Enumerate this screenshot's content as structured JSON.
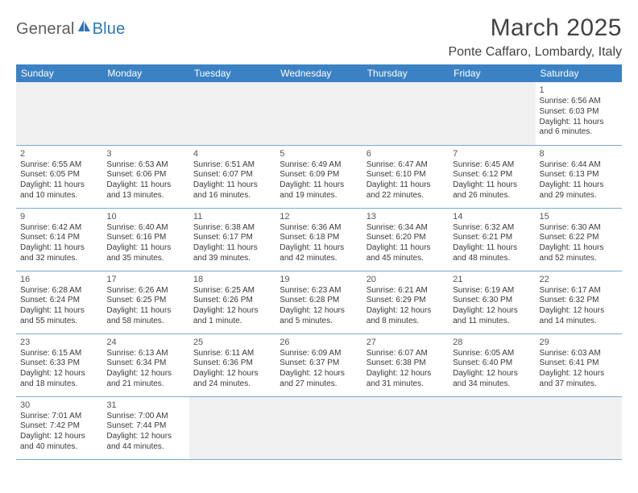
{
  "logo": {
    "general": "General",
    "blue": "Blue"
  },
  "title": "March 2025",
  "location": "Ponte Caffaro, Lombardy, Italy",
  "colors": {
    "header_bg": "#3b82c4",
    "header_text": "#ffffff",
    "grid_line": "#7ba9d1",
    "blank_bg": "#f0f0f0",
    "body_text": "#3a3a3a",
    "logo_gray": "#5e5e5e",
    "logo_blue": "#2a76b8"
  },
  "daynames": [
    "Sunday",
    "Monday",
    "Tuesday",
    "Wednesday",
    "Thursday",
    "Friday",
    "Saturday"
  ],
  "weeks": [
    [
      null,
      null,
      null,
      null,
      null,
      null,
      {
        "n": "1",
        "sr": "Sunrise: 6:56 AM",
        "ss": "Sunset: 6:03 PM",
        "d1": "Daylight: 11 hours",
        "d2": "and 6 minutes."
      }
    ],
    [
      {
        "n": "2",
        "sr": "Sunrise: 6:55 AM",
        "ss": "Sunset: 6:05 PM",
        "d1": "Daylight: 11 hours",
        "d2": "and 10 minutes."
      },
      {
        "n": "3",
        "sr": "Sunrise: 6:53 AM",
        "ss": "Sunset: 6:06 PM",
        "d1": "Daylight: 11 hours",
        "d2": "and 13 minutes."
      },
      {
        "n": "4",
        "sr": "Sunrise: 6:51 AM",
        "ss": "Sunset: 6:07 PM",
        "d1": "Daylight: 11 hours",
        "d2": "and 16 minutes."
      },
      {
        "n": "5",
        "sr": "Sunrise: 6:49 AM",
        "ss": "Sunset: 6:09 PM",
        "d1": "Daylight: 11 hours",
        "d2": "and 19 minutes."
      },
      {
        "n": "6",
        "sr": "Sunrise: 6:47 AM",
        "ss": "Sunset: 6:10 PM",
        "d1": "Daylight: 11 hours",
        "d2": "and 22 minutes."
      },
      {
        "n": "7",
        "sr": "Sunrise: 6:45 AM",
        "ss": "Sunset: 6:12 PM",
        "d1": "Daylight: 11 hours",
        "d2": "and 26 minutes."
      },
      {
        "n": "8",
        "sr": "Sunrise: 6:44 AM",
        "ss": "Sunset: 6:13 PM",
        "d1": "Daylight: 11 hours",
        "d2": "and 29 minutes."
      }
    ],
    [
      {
        "n": "9",
        "sr": "Sunrise: 6:42 AM",
        "ss": "Sunset: 6:14 PM",
        "d1": "Daylight: 11 hours",
        "d2": "and 32 minutes."
      },
      {
        "n": "10",
        "sr": "Sunrise: 6:40 AM",
        "ss": "Sunset: 6:16 PM",
        "d1": "Daylight: 11 hours",
        "d2": "and 35 minutes."
      },
      {
        "n": "11",
        "sr": "Sunrise: 6:38 AM",
        "ss": "Sunset: 6:17 PM",
        "d1": "Daylight: 11 hours",
        "d2": "and 39 minutes."
      },
      {
        "n": "12",
        "sr": "Sunrise: 6:36 AM",
        "ss": "Sunset: 6:18 PM",
        "d1": "Daylight: 11 hours",
        "d2": "and 42 minutes."
      },
      {
        "n": "13",
        "sr": "Sunrise: 6:34 AM",
        "ss": "Sunset: 6:20 PM",
        "d1": "Daylight: 11 hours",
        "d2": "and 45 minutes."
      },
      {
        "n": "14",
        "sr": "Sunrise: 6:32 AM",
        "ss": "Sunset: 6:21 PM",
        "d1": "Daylight: 11 hours",
        "d2": "and 48 minutes."
      },
      {
        "n": "15",
        "sr": "Sunrise: 6:30 AM",
        "ss": "Sunset: 6:22 PM",
        "d1": "Daylight: 11 hours",
        "d2": "and 52 minutes."
      }
    ],
    [
      {
        "n": "16",
        "sr": "Sunrise: 6:28 AM",
        "ss": "Sunset: 6:24 PM",
        "d1": "Daylight: 11 hours",
        "d2": "and 55 minutes."
      },
      {
        "n": "17",
        "sr": "Sunrise: 6:26 AM",
        "ss": "Sunset: 6:25 PM",
        "d1": "Daylight: 11 hours",
        "d2": "and 58 minutes."
      },
      {
        "n": "18",
        "sr": "Sunrise: 6:25 AM",
        "ss": "Sunset: 6:26 PM",
        "d1": "Daylight: 12 hours",
        "d2": "and 1 minute."
      },
      {
        "n": "19",
        "sr": "Sunrise: 6:23 AM",
        "ss": "Sunset: 6:28 PM",
        "d1": "Daylight: 12 hours",
        "d2": "and 5 minutes."
      },
      {
        "n": "20",
        "sr": "Sunrise: 6:21 AM",
        "ss": "Sunset: 6:29 PM",
        "d1": "Daylight: 12 hours",
        "d2": "and 8 minutes."
      },
      {
        "n": "21",
        "sr": "Sunrise: 6:19 AM",
        "ss": "Sunset: 6:30 PM",
        "d1": "Daylight: 12 hours",
        "d2": "and 11 minutes."
      },
      {
        "n": "22",
        "sr": "Sunrise: 6:17 AM",
        "ss": "Sunset: 6:32 PM",
        "d1": "Daylight: 12 hours",
        "d2": "and 14 minutes."
      }
    ],
    [
      {
        "n": "23",
        "sr": "Sunrise: 6:15 AM",
        "ss": "Sunset: 6:33 PM",
        "d1": "Daylight: 12 hours",
        "d2": "and 18 minutes."
      },
      {
        "n": "24",
        "sr": "Sunrise: 6:13 AM",
        "ss": "Sunset: 6:34 PM",
        "d1": "Daylight: 12 hours",
        "d2": "and 21 minutes."
      },
      {
        "n": "25",
        "sr": "Sunrise: 6:11 AM",
        "ss": "Sunset: 6:36 PM",
        "d1": "Daylight: 12 hours",
        "d2": "and 24 minutes."
      },
      {
        "n": "26",
        "sr": "Sunrise: 6:09 AM",
        "ss": "Sunset: 6:37 PM",
        "d1": "Daylight: 12 hours",
        "d2": "and 27 minutes."
      },
      {
        "n": "27",
        "sr": "Sunrise: 6:07 AM",
        "ss": "Sunset: 6:38 PM",
        "d1": "Daylight: 12 hours",
        "d2": "and 31 minutes."
      },
      {
        "n": "28",
        "sr": "Sunrise: 6:05 AM",
        "ss": "Sunset: 6:40 PM",
        "d1": "Daylight: 12 hours",
        "d2": "and 34 minutes."
      },
      {
        "n": "29",
        "sr": "Sunrise: 6:03 AM",
        "ss": "Sunset: 6:41 PM",
        "d1": "Daylight: 12 hours",
        "d2": "and 37 minutes."
      }
    ],
    [
      {
        "n": "30",
        "sr": "Sunrise: 7:01 AM",
        "ss": "Sunset: 7:42 PM",
        "d1": "Daylight: 12 hours",
        "d2": "and 40 minutes."
      },
      {
        "n": "31",
        "sr": "Sunrise: 7:00 AM",
        "ss": "Sunset: 7:44 PM",
        "d1": "Daylight: 12 hours",
        "d2": "and 44 minutes."
      },
      null,
      null,
      null,
      null,
      null
    ]
  ]
}
